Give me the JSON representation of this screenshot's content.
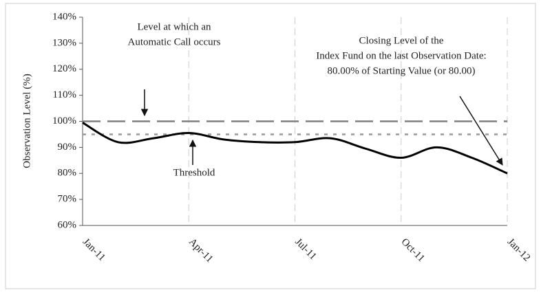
{
  "chart_data": {
    "type": "line",
    "y_label": "Observation Level (%)",
    "x": [
      "2011-01",
      "2011-02",
      "2011-03",
      "2011-04",
      "2011-05",
      "2011-06",
      "2011-07",
      "2011-08",
      "2011-09",
      "2011-10",
      "2011-11",
      "2011-12",
      "2012-01"
    ],
    "series": [
      {
        "name": "Index Fund",
        "color": "#000000",
        "values": [
          99.5,
          92,
          93.5,
          95.5,
          93,
          92,
          92,
          93.5,
          89.5,
          86,
          90,
          86,
          80
        ]
      }
    ],
    "ylim": [
      60,
      140
    ],
    "yticks": [
      {
        "value": 60,
        "label": "60%"
      },
      {
        "value": 70,
        "label": "70%"
      },
      {
        "value": 80,
        "label": "80%"
      },
      {
        "value": 90,
        "label": "90%"
      },
      {
        "value": 100,
        "label": "100%"
      },
      {
        "value": 110,
        "label": "110%"
      },
      {
        "value": 120,
        "label": "120%"
      },
      {
        "value": 130,
        "label": "130%"
      },
      {
        "value": 140,
        "label": "140%"
      }
    ],
    "xlim": [
      "2011-01",
      "2012-01"
    ],
    "xticks": [
      {
        "value": "2011-01",
        "label": "Jan-11"
      },
      {
        "value": "2011-04",
        "label": "Apr-11"
      },
      {
        "value": "2011-07",
        "label": "Jul-11"
      },
      {
        "value": "2011-10",
        "label": "Oct-11"
      },
      {
        "value": "2012-01",
        "label": "Jan-12"
      }
    ],
    "grid": "x",
    "reference_lines": [
      {
        "name": "call-level",
        "value": 100,
        "color": "#7f7f7f",
        "style": "dashed"
      },
      {
        "name": "threshold",
        "value": 95,
        "color": "#999999",
        "style": "dotted"
      }
    ],
    "annotations": [
      {
        "lines": [
          "Level at which an",
          "Automatic Call occurs"
        ]
      },
      {
        "lines": [
          "Threshold"
        ]
      },
      {
        "lines": [
          "Closing Level of the",
          "Index Fund on the last Observation Date:",
          "80.00% of Starting Value (or 80.00)"
        ]
      }
    ]
  }
}
